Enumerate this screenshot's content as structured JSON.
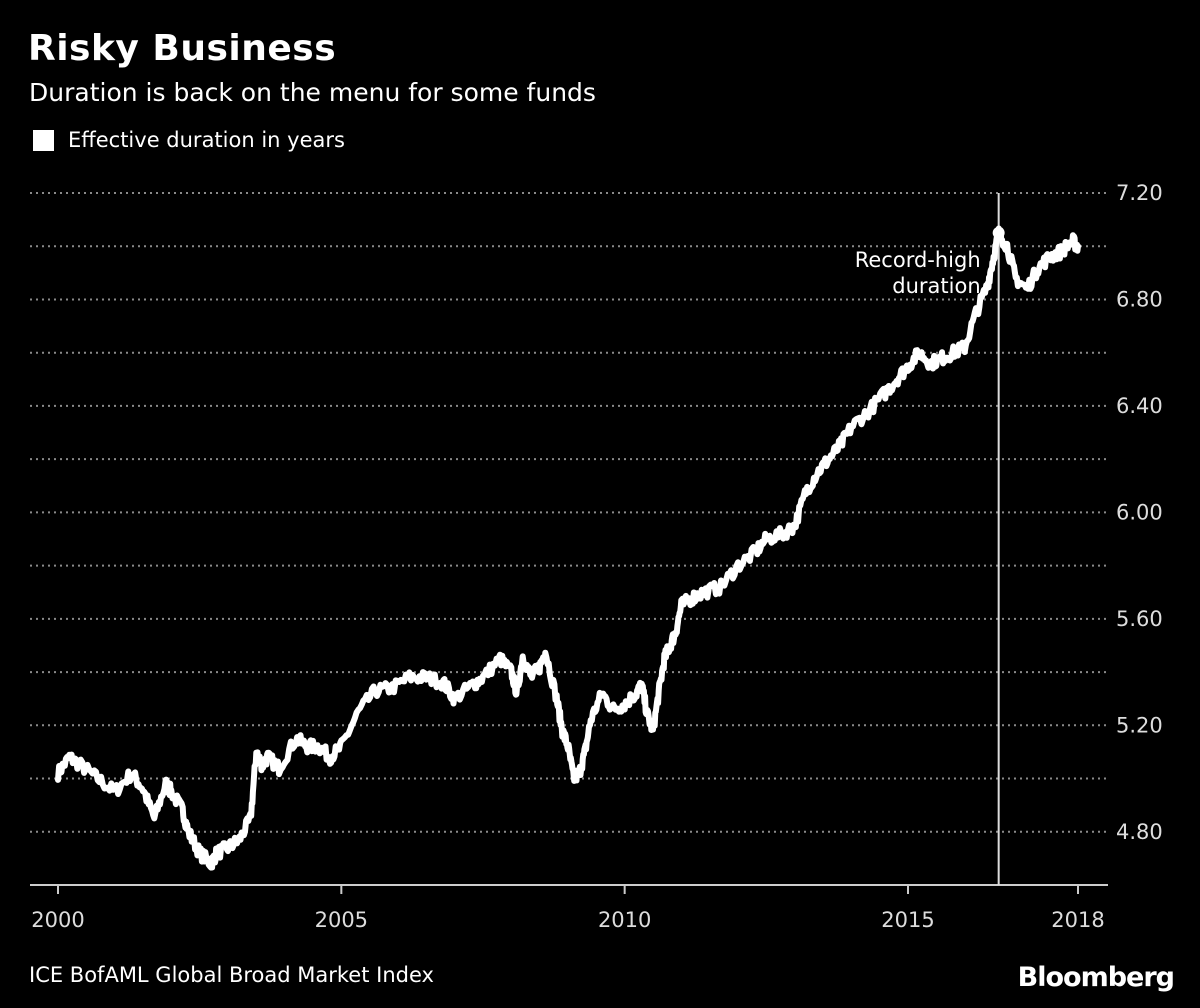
{
  "header": {
    "title": "Risky Business",
    "subtitle": "Duration is back on the menu for some funds"
  },
  "footer": {
    "source": "ICE BofAML Global Broad Market Index",
    "brand": "Bloomberg"
  },
  "colors": {
    "background": "#000000",
    "line": "#ffffff",
    "grid": "#8a8a8a"
  },
  "chart_data": {
    "type": "line",
    "title": "Risky Business",
    "subtitle": "Duration is back on the menu for some funds",
    "legend": [
      "Effective duration in years"
    ],
    "legend_position": "top-left",
    "xlabel": "",
    "ylabel": "",
    "xlim": [
      2000,
      2018
    ],
    "ylim": [
      4.6,
      7.2
    ],
    "x_ticks": [
      2000,
      2005,
      2010,
      2015,
      2018
    ],
    "x_tick_labels": [
      "2000",
      "2005",
      "2010",
      "2015",
      "2018"
    ],
    "y_ticks": [
      4.8,
      5.2,
      5.6,
      6.0,
      6.4,
      6.8,
      7.2
    ],
    "y_tick_labels": [
      "4.80",
      "5.20",
      "5.60",
      "6.00",
      "6.40",
      "6.80",
      "7.20"
    ],
    "y_axis_side": "right",
    "grid": true,
    "series": [
      {
        "name": "Effective duration in years",
        "x": [
          2000.0,
          2000.2,
          2000.4,
          2000.7,
          2001.0,
          2001.3,
          2001.5,
          2001.7,
          2001.9,
          2002.0,
          2002.2,
          2002.3,
          2002.5,
          2002.7,
          2002.8,
          2003.0,
          2003.2,
          2003.4,
          2003.5,
          2003.6,
          2003.7,
          2003.9,
          2004.2,
          2004.4,
          2004.6,
          2004.8,
          2005.0,
          2005.3,
          2005.6,
          2005.9,
          2006.2,
          2006.5,
          2006.8,
          2007.0,
          2007.3,
          2007.5,
          2007.8,
          2008.0,
          2008.1,
          2008.2,
          2008.35,
          2008.5,
          2008.6,
          2008.8,
          2008.9,
          2009.0,
          2009.1,
          2009.2,
          2009.3,
          2009.4,
          2009.6,
          2009.8,
          2010.0,
          2010.2,
          2010.3,
          2010.4,
          2010.5,
          2010.6,
          2010.7,
          2010.8,
          2010.9,
          2011.0,
          2011.2,
          2011.4,
          2011.7,
          2012.0,
          2012.3,
          2012.5,
          2012.8,
          2013.0,
          2013.2,
          2013.4,
          2013.6,
          2013.8,
          2014.0,
          2014.3,
          2014.6,
          2014.8,
          2015.0,
          2015.2,
          2015.4,
          2015.6,
          2015.8,
          2016.0,
          2016.2,
          2016.4,
          2016.5,
          2016.6,
          2016.75,
          2016.9,
          2017.1,
          2017.3,
          2017.5,
          2017.7,
          2017.9,
          2018.0
        ],
        "values": [
          5.02,
          5.08,
          5.05,
          5.0,
          4.95,
          5.02,
          4.96,
          4.85,
          4.98,
          4.95,
          4.88,
          4.8,
          4.72,
          4.68,
          4.72,
          4.74,
          4.77,
          4.85,
          5.1,
          5.05,
          5.08,
          5.04,
          5.15,
          5.12,
          5.12,
          5.08,
          5.12,
          5.25,
          5.33,
          5.34,
          5.38,
          5.38,
          5.36,
          5.3,
          5.35,
          5.38,
          5.45,
          5.4,
          5.32,
          5.46,
          5.38,
          5.42,
          5.48,
          5.3,
          5.18,
          5.12,
          5.0,
          5.02,
          5.1,
          5.22,
          5.32,
          5.26,
          5.28,
          5.32,
          5.35,
          5.24,
          5.18,
          5.32,
          5.45,
          5.5,
          5.55,
          5.65,
          5.68,
          5.7,
          5.72,
          5.8,
          5.85,
          5.9,
          5.92,
          5.95,
          6.08,
          6.15,
          6.2,
          6.25,
          6.32,
          6.38,
          6.45,
          6.5,
          6.55,
          6.6,
          6.56,
          6.58,
          6.6,
          6.62,
          6.75,
          6.85,
          6.95,
          7.05,
          7.0,
          6.88,
          6.84,
          6.92,
          6.96,
          6.98,
          7.02,
          7.0
        ]
      }
    ],
    "annotations": [
      {
        "label_lines": [
          "Record-high",
          "duration"
        ],
        "x": 2016.6,
        "y": 7.05,
        "vertical_line": true
      }
    ]
  }
}
